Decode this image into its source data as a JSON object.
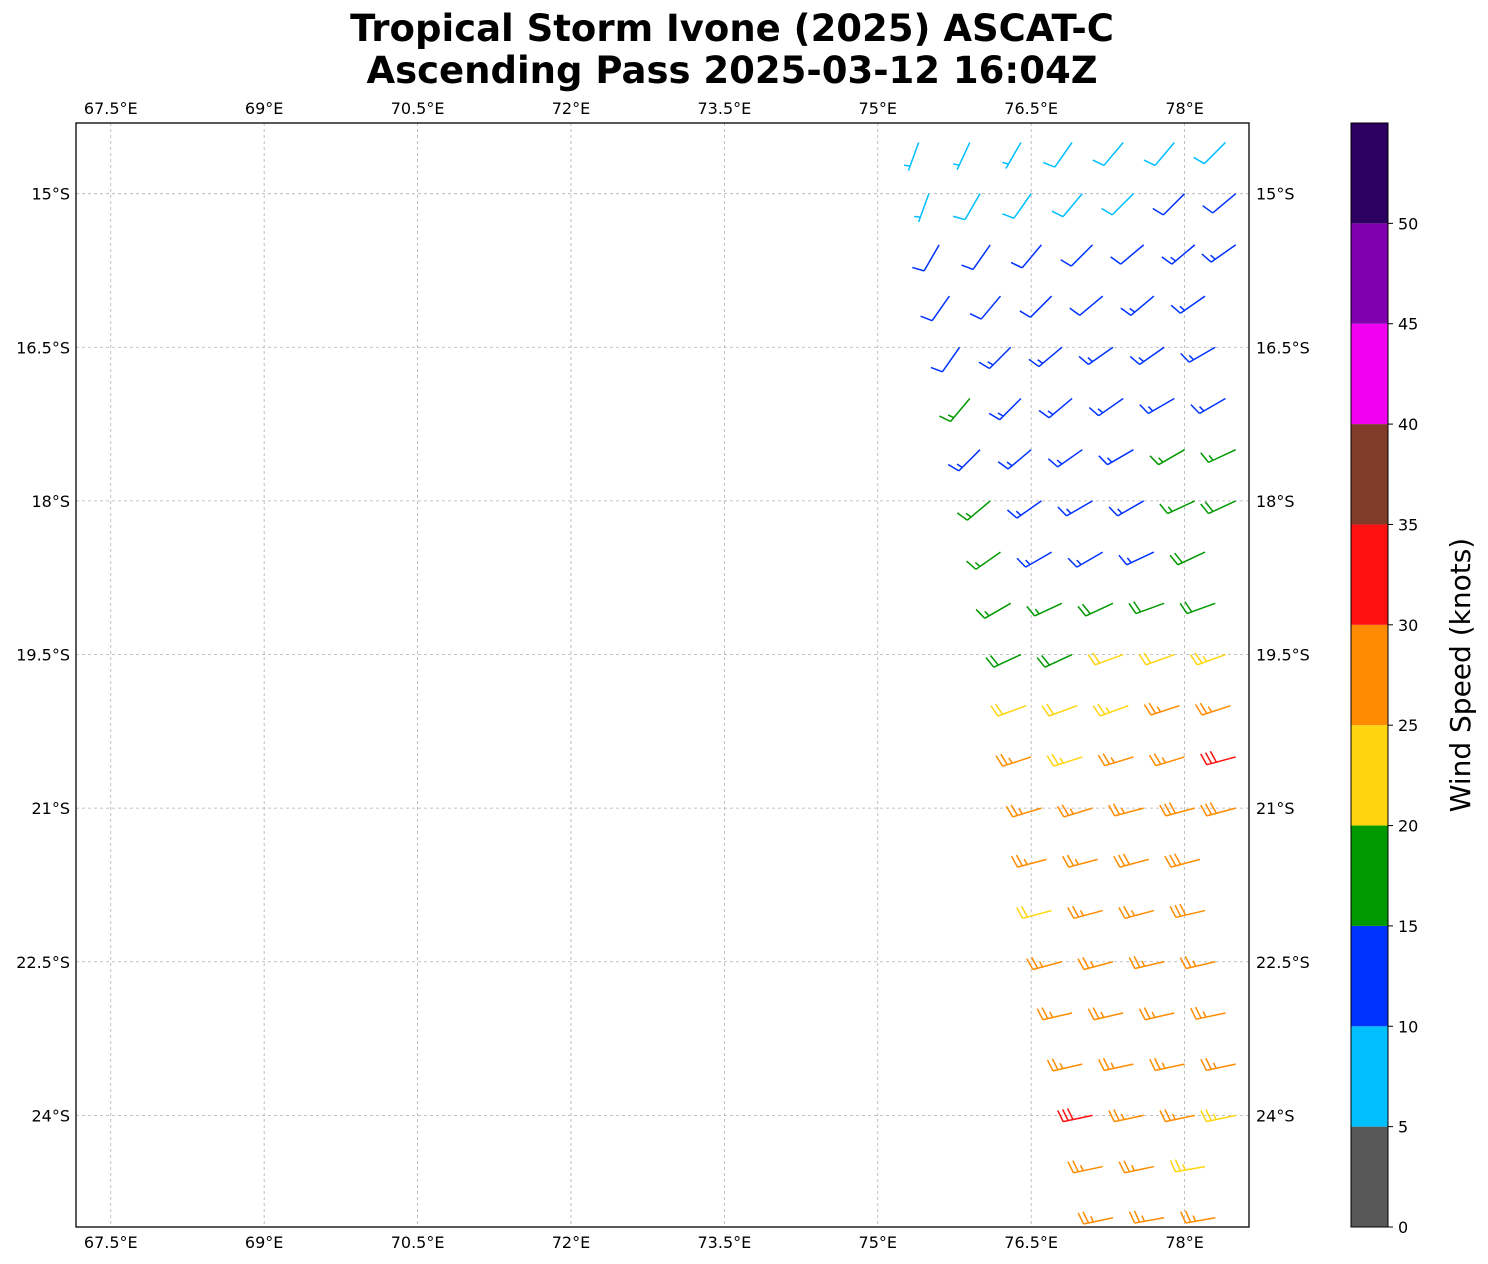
{
  "chart_data": {
    "type": "barbs",
    "title": [
      "Tropical Storm Ivone (2025) ASCAT-C",
      "Ascending Pass 2025-03-12 16:04Z"
    ],
    "xlim": [
      67.16,
      78.63
    ],
    "ylim": [
      -25.09,
      -14.31
    ],
    "xticks": [
      {
        "value": 67.5,
        "label": "67.5°E"
      },
      {
        "value": 69,
        "label": "69°E"
      },
      {
        "value": 70.5,
        "label": "70.5°E"
      },
      {
        "value": 72,
        "label": "72°E"
      },
      {
        "value": 73.5,
        "label": "73.5°E"
      },
      {
        "value": 75,
        "label": "75°E"
      },
      {
        "value": 76.5,
        "label": "76.5°E"
      },
      {
        "value": 78,
        "label": "78°E"
      }
    ],
    "yticks": [
      {
        "value": -15,
        "label": "15°S"
      },
      {
        "value": -16.5,
        "label": "16.5°S"
      },
      {
        "value": -18,
        "label": "18°S"
      },
      {
        "value": -19.5,
        "label": "19.5°S"
      },
      {
        "value": -21,
        "label": "21°S"
      },
      {
        "value": -22.5,
        "label": "22.5°S"
      },
      {
        "value": -24,
        "label": "24°S"
      }
    ],
    "grid": true,
    "colorbar": {
      "label": "Wind Speed (knots)",
      "bounds": [
        0,
        5,
        10,
        15,
        20,
        25,
        30,
        35,
        40,
        45,
        50,
        55
      ],
      "colors": [
        "#585858",
        "#00bfff",
        "#0033ff",
        "#009900",
        "#ffd510",
        "#ff8c00",
        "#ff1010",
        "#803c28",
        "#f000f0",
        "#8000b0",
        "#2c0060"
      ],
      "ticks": [
        0,
        5,
        10,
        15,
        20,
        25,
        30,
        35,
        40,
        45,
        50
      ]
    },
    "rows": [
      {
        "lat": -14.5,
        "lon": [
          75.4,
          75.9,
          76.4,
          76.9,
          77.4,
          77.9,
          78.4
        ],
        "speed": [
          6,
          7,
          7,
          8,
          8,
          8,
          8
        ],
        "direction": [
          200,
          205,
          210,
          215,
          220,
          220,
          225
        ]
      },
      {
        "lat": -15.0,
        "lon": [
          75.5,
          76.0,
          76.5,
          77.0,
          77.5,
          78.0,
          78.5
        ],
        "speed": [
          7,
          8,
          8,
          9,
          9,
          12,
          12
        ],
        "direction": [
          200,
          210,
          215,
          220,
          225,
          225,
          230
        ]
      },
      {
        "lat": -15.5,
        "lon": [
          75.6,
          76.1,
          76.6,
          77.1,
          77.6,
          78.1,
          78.5
        ],
        "speed": [
          11,
          11,
          12,
          12,
          12,
          13,
          13
        ],
        "direction": [
          210,
          215,
          220,
          225,
          230,
          230,
          235
        ]
      },
      {
        "lat": -16.0,
        "lon": [
          75.7,
          76.2,
          76.7,
          77.2,
          77.7,
          78.2
        ],
        "speed": [
          12,
          12,
          12,
          12,
          13,
          13
        ],
        "direction": [
          215,
          220,
          225,
          230,
          230,
          235
        ]
      },
      {
        "lat": -16.5,
        "lon": [
          75.8,
          76.3,
          76.8,
          77.3,
          77.8,
          78.3
        ],
        "speed": [
          12,
          13,
          13,
          13,
          13,
          14
        ],
        "direction": [
          215,
          225,
          230,
          235,
          235,
          240
        ]
      },
      {
        "lat": -17.0,
        "lon": [
          75.9,
          76.4,
          76.9,
          77.4,
          77.9,
          78.4
        ],
        "speed": [
          16,
          13,
          13,
          13,
          14,
          14
        ],
        "direction": [
          220,
          225,
          230,
          235,
          240,
          240
        ]
      },
      {
        "lat": -17.5,
        "lon": [
          76.0,
          76.5,
          77.0,
          77.5,
          78.0,
          78.5
        ],
        "speed": [
          13,
          13,
          14,
          14,
          16,
          17
        ],
        "direction": [
          225,
          230,
          235,
          240,
          240,
          245
        ]
      },
      {
        "lat": -18.0,
        "lon": [
          76.1,
          76.6,
          77.1,
          77.6,
          78.1,
          78.5
        ],
        "speed": [
          16,
          13,
          13,
          14,
          17,
          18
        ],
        "direction": [
          230,
          235,
          240,
          240,
          245,
          245
        ]
      },
      {
        "lat": -18.5,
        "lon": [
          76.2,
          76.7,
          77.2,
          77.7,
          78.2
        ],
        "speed": [
          17,
          13,
          14,
          14,
          18
        ],
        "direction": [
          235,
          240,
          240,
          245,
          245
        ]
      },
      {
        "lat": -19.0,
        "lon": [
          76.3,
          76.8,
          77.3,
          77.8,
          78.3
        ],
        "speed": [
          17,
          17,
          18,
          19,
          19
        ],
        "direction": [
          240,
          245,
          245,
          250,
          250
        ]
      },
      {
        "lat": -19.5,
        "lon": [
          76.4,
          76.9,
          77.4,
          77.9,
          78.4
        ],
        "speed": [
          18,
          18,
          21,
          22,
          24
        ],
        "direction": [
          245,
          245,
          250,
          250,
          250
        ]
      },
      {
        "lat": -20.0,
        "lon": [
          76.45,
          76.95,
          77.45,
          77.95,
          78.45
        ],
        "speed": [
          22,
          22,
          23,
          26,
          27
        ],
        "direction": [
          250,
          250,
          250,
          252,
          252
        ]
      },
      {
        "lat": -20.5,
        "lon": [
          76.5,
          77.0,
          77.5,
          78.0,
          78.5
        ],
        "speed": [
          26,
          23,
          26,
          27,
          32
        ],
        "direction": [
          252,
          252,
          253,
          253,
          255
        ]
      },
      {
        "lat": -21.0,
        "lon": [
          76.6,
          77.1,
          77.6,
          78.1,
          78.5
        ],
        "speed": [
          27,
          27,
          27,
          28,
          28
        ],
        "direction": [
          253,
          253,
          255,
          255,
          255
        ]
      },
      {
        "lat": -21.5,
        "lon": [
          76.65,
          77.15,
          77.65,
          78.15
        ],
        "speed": [
          27,
          27,
          28,
          28
        ],
        "direction": [
          255,
          255,
          255,
          255
        ]
      },
      {
        "lat": -22.0,
        "lon": [
          76.7,
          77.2,
          77.7,
          78.2
        ],
        "speed": [
          22,
          27,
          27,
          28
        ],
        "direction": [
          255,
          255,
          255,
          257
        ]
      },
      {
        "lat": -22.5,
        "lon": [
          76.8,
          77.3,
          77.8,
          78.3
        ],
        "speed": [
          27,
          27,
          27,
          27
        ],
        "direction": [
          255,
          255,
          257,
          257
        ]
      },
      {
        "lat": -23.0,
        "lon": [
          76.9,
          77.4,
          77.9,
          78.4
        ],
        "speed": [
          27,
          27,
          27,
          26
        ],
        "direction": [
          257,
          257,
          257,
          258
        ]
      },
      {
        "lat": -23.5,
        "lon": [
          77.0,
          77.5,
          78.0,
          78.5
        ],
        "speed": [
          27,
          27,
          26,
          26
        ],
        "direction": [
          257,
          258,
          258,
          258
        ]
      },
      {
        "lat": -24.0,
        "lon": [
          77.1,
          77.6,
          78.1,
          78.5
        ],
        "speed": [
          32,
          27,
          26,
          23
        ],
        "direction": [
          258,
          258,
          258,
          258
        ]
      },
      {
        "lat": -24.5,
        "lon": [
          77.2,
          77.7,
          78.2
        ],
        "speed": [
          27,
          27,
          23
        ],
        "direction": [
          258,
          258,
          260
        ]
      },
      {
        "lat": -25.0,
        "lon": [
          77.3,
          77.8,
          78.3
        ],
        "speed": [
          27,
          27,
          27
        ],
        "direction": [
          258,
          260,
          260
        ]
      }
    ]
  }
}
